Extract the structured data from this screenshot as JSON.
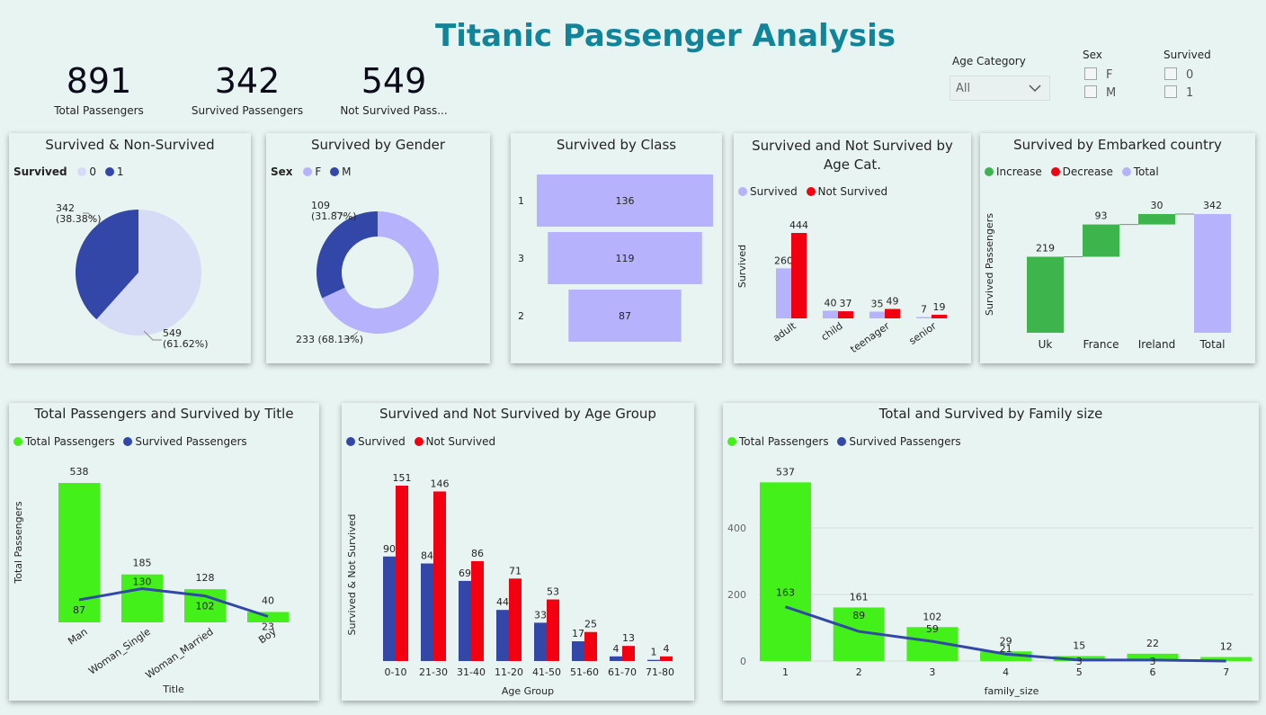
{
  "page_title": "Titanic Passenger Analysis",
  "kpis": [
    {
      "value": "891",
      "label": "Total Passengers"
    },
    {
      "value": "342",
      "label": "Survived Passengers"
    },
    {
      "value": "549",
      "label": "Not Survived Pass..."
    }
  ],
  "slicers": {
    "age_category": {
      "title": "Age Category",
      "selected": "All"
    },
    "sex": {
      "title": "Sex",
      "options": [
        "F",
        "M"
      ]
    },
    "survived": {
      "title": "Survived",
      "options": [
        "0",
        "1"
      ]
    }
  },
  "colors": {
    "light_lavender": "#d6dbf6",
    "navy": "#3247a8",
    "lavender": "#b6b2fb",
    "red": "#f2000f",
    "green": "#3eb44c",
    "lime": "#44f01a"
  },
  "charts": {
    "pie_survived": {
      "title": "Survived & Non-Survived",
      "legend_title": "Survived",
      "legend": [
        "0",
        "1"
      ]
    },
    "donut_gender": {
      "title": "Survived by Gender",
      "legend_title": "Sex",
      "legend": [
        "F",
        "M"
      ]
    },
    "funnel_class": {
      "title": "Survived by Class"
    },
    "age_cat": {
      "title": "Survived and Not Survived by Age Cat.",
      "legend": [
        "Survived",
        "Not Survived"
      ],
      "ylabel": "Survived"
    },
    "waterfall": {
      "title": "Survived by Embarked country",
      "legend": [
        "Increase",
        "Decrease",
        "Total"
      ],
      "ylabel": "Survived Passengers"
    },
    "title_chart": {
      "title": "Total Passengers and Survived by Title",
      "legend": [
        "Total Passengers",
        "Survived Passengers"
      ],
      "ylabel": "Total Passengers",
      "xlabel": "Title"
    },
    "age_group": {
      "title": "Survived and Not Survived by Age Group",
      "legend": [
        "Survived",
        "Not Survived"
      ],
      "ylabel": "Survived & Not Survived",
      "xlabel": "Age Group"
    },
    "family": {
      "title": "Total and Survived by Family size",
      "legend": [
        "Total Passengers",
        "Survived Passengers"
      ],
      "xlabel": "family_size"
    }
  },
  "chart_data": [
    {
      "type": "pie",
      "id": "pie_survived",
      "categories": [
        "0",
        "1"
      ],
      "values": [
        549,
        342
      ],
      "labels": [
        "549\n(61.62%)",
        "342\n(38.38%)"
      ]
    },
    {
      "type": "pie",
      "id": "donut_gender",
      "categories": [
        "F",
        "M"
      ],
      "values": [
        233,
        109
      ],
      "labels": [
        "233 (68.13%)",
        "109\n(31.87%)"
      ]
    },
    {
      "type": "bar",
      "id": "funnel_class",
      "categories": [
        "1",
        "3",
        "2"
      ],
      "values": [
        136,
        119,
        87
      ]
    },
    {
      "type": "bar",
      "id": "age_cat",
      "categories": [
        "adult",
        "child",
        "teenager",
        "senior"
      ],
      "series": [
        {
          "name": "Survived",
          "values": [
            260,
            40,
            35,
            7
          ]
        },
        {
          "name": "Not Survived",
          "values": [
            444,
            37,
            49,
            19
          ]
        }
      ]
    },
    {
      "type": "bar",
      "id": "waterfall",
      "categories": [
        "Uk",
        "France",
        "Ireland",
        "Total"
      ],
      "values": [
        219,
        93,
        30,
        342
      ]
    },
    {
      "type": "bar",
      "id": "title_chart",
      "categories": [
        "Man",
        "Woman_Single",
        "Woman_Married",
        "Boy"
      ],
      "series": [
        {
          "name": "Total Passengers",
          "values": [
            538,
            185,
            128,
            40
          ]
        },
        {
          "name": "Survived Passengers",
          "values": [
            87,
            130,
            102,
            23
          ]
        }
      ]
    },
    {
      "type": "bar",
      "id": "age_group",
      "categories": [
        "0-10",
        "21-30",
        "31-40",
        "11-20",
        "41-50",
        "51-60",
        "61-70",
        "71-80"
      ],
      "series": [
        {
          "name": "Survived",
          "values": [
            90,
            84,
            69,
            44,
            33,
            17,
            4,
            1
          ]
        },
        {
          "name": "Not Survived",
          "values": [
            151,
            146,
            86,
            71,
            53,
            25,
            13,
            4
          ]
        }
      ]
    },
    {
      "type": "bar",
      "id": "family",
      "categories": [
        "1",
        "2",
        "3",
        "4",
        "5",
        "6",
        "7"
      ],
      "series": [
        {
          "name": "Total Passengers",
          "values": [
            537,
            161,
            102,
            29,
            15,
            22,
            12
          ]
        },
        {
          "name": "Survived Passengers",
          "values": [
            163,
            89,
            59,
            21,
            3,
            3,
            0
          ]
        }
      ],
      "yticks": [
        0,
        200,
        400
      ]
    }
  ]
}
